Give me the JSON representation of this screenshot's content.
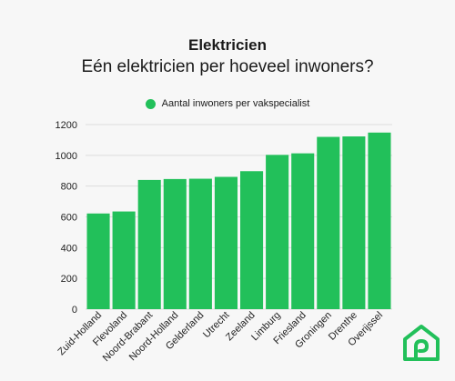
{
  "header": {
    "title": "Elektricien",
    "subtitle": "Eén elektricien per hoeveel inwoners?"
  },
  "colors": {
    "bar": "#22c05a",
    "background": "#f7f7f7",
    "grid": "#dddddd",
    "logo": "#22c05a"
  },
  "logo": {
    "icon": "house-logo-icon"
  },
  "chart_data": {
    "type": "bar",
    "categories": [
      "Zuid-Holland",
      "Flevoland",
      "Noord-Brabant",
      "Noord-Holland",
      "Gelderland",
      "Utrecht",
      "Zeeland",
      "Limburg",
      "Friesland",
      "Groningen",
      "Drenthe",
      "Overijssel"
    ],
    "series": [
      {
        "name": "Aantal inwoners per vakspecialist",
        "values": [
          622,
          635,
          840,
          846,
          848,
          860,
          897,
          1003,
          1013,
          1120,
          1123,
          1148
        ]
      }
    ],
    "ylim": [
      0,
      1200
    ],
    "yticks": [
      0,
      200,
      400,
      600,
      800,
      1000,
      1200
    ],
    "grid": true,
    "legend_position": "top",
    "xlabel": "",
    "ylabel": ""
  }
}
